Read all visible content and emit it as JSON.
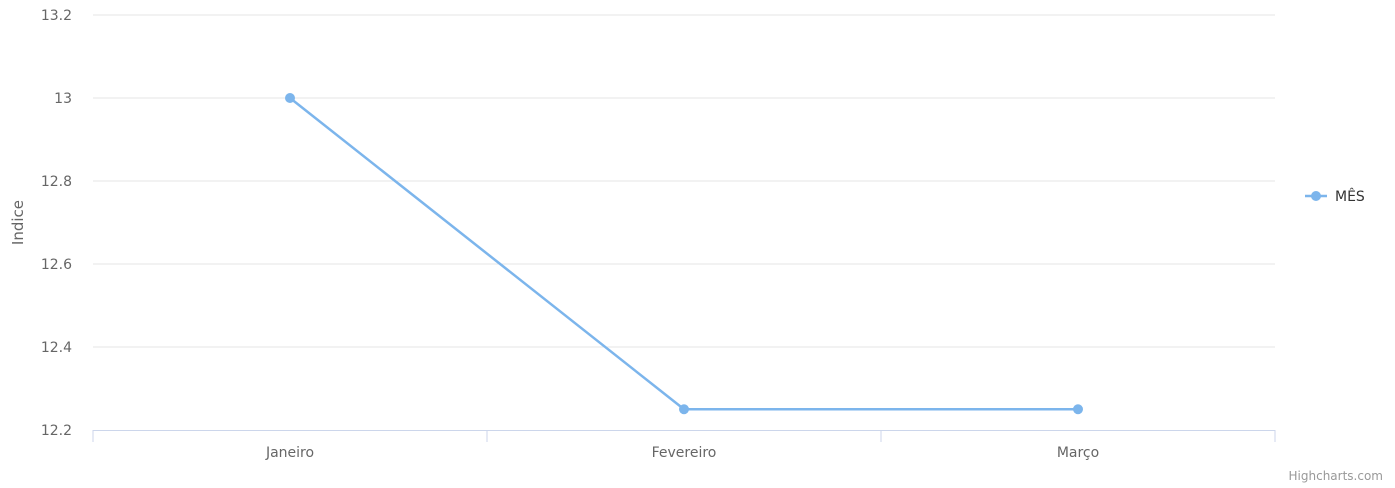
{
  "chart_data": {
    "type": "line",
    "categories": [
      "Janeiro",
      "Fevereiro",
      "Março"
    ],
    "series": [
      {
        "name": "MÊS",
        "values": [
          13.0,
          12.25,
          12.25
        ],
        "color": "#7cb5ec"
      }
    ],
    "ylabel": "Indice",
    "xlabel": "",
    "ylim": [
      12.2,
      13.2
    ],
    "y_ticks": [
      "13.2",
      "13",
      "12.8",
      "12.6",
      "12.4",
      "12.2"
    ],
    "y_tick_values": [
      13.2,
      13.0,
      12.8,
      12.6,
      12.4,
      12.2
    ],
    "grid": true,
    "legend_position": "right"
  },
  "credits": "Highcharts.com",
  "colors": {
    "series": "#7cb5ec",
    "grid": "#e6e6e6",
    "axis": "#ccd6eb",
    "label": "#666666"
  }
}
